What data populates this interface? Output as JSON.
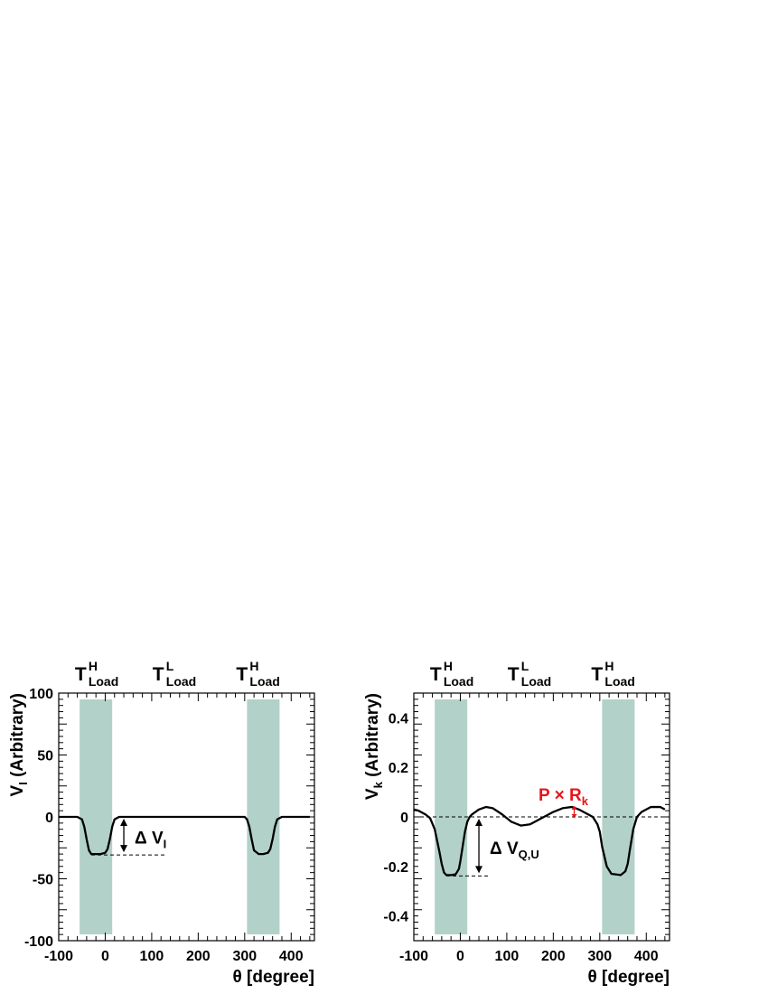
{
  "chart_data": [
    {
      "type": "line",
      "xlabel": "θ [degree]",
      "ylabel": "V",
      "ylabel_sub": "I",
      "ylabel_suffix": " (Arbitrary)",
      "xlim": [
        -100,
        450
      ],
      "ylim": [
        -100,
        100
      ],
      "xticks": [
        -100,
        0,
        100,
        200,
        300,
        400
      ],
      "yticks": [
        -100,
        -50,
        0,
        50,
        100
      ],
      "bands": [
        [
          -55,
          15
        ],
        [
          305,
          375
        ]
      ],
      "top_labels": [
        {
          "main": "T",
          "sup": "H",
          "sub": "Load"
        },
        {
          "main": "T",
          "sup": "L",
          "sub": "Load"
        },
        {
          "main": "T",
          "sup": "H",
          "sub": "Load"
        }
      ],
      "annotation": {
        "text": "Δ V",
        "sub": "I"
      },
      "series": [
        {
          "x": [
            -100,
            -60,
            -50,
            -45,
            -40,
            -35,
            -30,
            -20,
            -10,
            0,
            5,
            10,
            15,
            20,
            30,
            40,
            300,
            305,
            310,
            315,
            320,
            330,
            340,
            350,
            355,
            360,
            365,
            370,
            380,
            440
          ],
          "y": [
            0,
            0,
            -2,
            -8,
            -18,
            -27,
            -30,
            -30,
            -30,
            -29,
            -26,
            -18,
            -8,
            -2,
            0,
            0,
            0,
            -2,
            -8,
            -18,
            -27,
            -30,
            -30,
            -29,
            -26,
            -18,
            -8,
            -2,
            0,
            0
          ]
        }
      ]
    },
    {
      "type": "line",
      "xlabel": "θ [degree]",
      "ylabel": "V",
      "ylabel_sub": "k",
      "ylabel_suffix": " (Arbitrary)",
      "xlim": [
        -100,
        450
      ],
      "ylim": [
        -0.5,
        0.5
      ],
      "xticks": [
        -100,
        0,
        100,
        200,
        300,
        400
      ],
      "yticks": [
        -0.4,
        -0.2,
        0,
        0.2,
        0.4
      ],
      "ytick_labels": [
        "-0.4",
        "-0.2",
        "0",
        "0.2",
        "0.4"
      ],
      "bands": [
        [
          -55,
          15
        ],
        [
          305,
          375
        ]
      ],
      "top_labels": [
        {
          "main": "T",
          "sup": "H",
          "sub": "Load"
        },
        {
          "main": "T",
          "sup": "L",
          "sub": "Load"
        },
        {
          "main": "T",
          "sup": "H",
          "sub": "Load"
        }
      ],
      "annotation": {
        "text": "Δ V",
        "sub": "Q,U"
      },
      "annotation2": {
        "text": "P × R",
        "sub": "k",
        "color": "#e8141b"
      },
      "series": [
        {
          "x": [
            -100,
            -90,
            -75,
            -65,
            -55,
            -45,
            -40,
            -35,
            -30,
            -20,
            -10,
            -3,
            0,
            5,
            10,
            15,
            20,
            25,
            40,
            55,
            70,
            90,
            110,
            130,
            150,
            165,
            180,
            200,
            220,
            240,
            255,
            270,
            285,
            295,
            300,
            305,
            315,
            325,
            345,
            355,
            360,
            365,
            372,
            380,
            390,
            410,
            430,
            440
          ],
          "y": [
            0.03,
            0.025,
            0.01,
            -0.005,
            -0.05,
            -0.14,
            -0.19,
            -0.225,
            -0.235,
            -0.235,
            -0.232,
            -0.21,
            -0.18,
            -0.12,
            -0.06,
            -0.02,
            0.0,
            0.01,
            0.03,
            0.04,
            0.035,
            0.01,
            -0.02,
            -0.035,
            -0.03,
            -0.015,
            0.0,
            0.02,
            0.035,
            0.04,
            0.03,
            0.015,
            0.0,
            -0.03,
            -0.06,
            -0.12,
            -0.2,
            -0.23,
            -0.235,
            -0.22,
            -0.19,
            -0.13,
            -0.05,
            0.0,
            0.02,
            0.04,
            0.04,
            0.03
          ]
        }
      ]
    }
  ]
}
